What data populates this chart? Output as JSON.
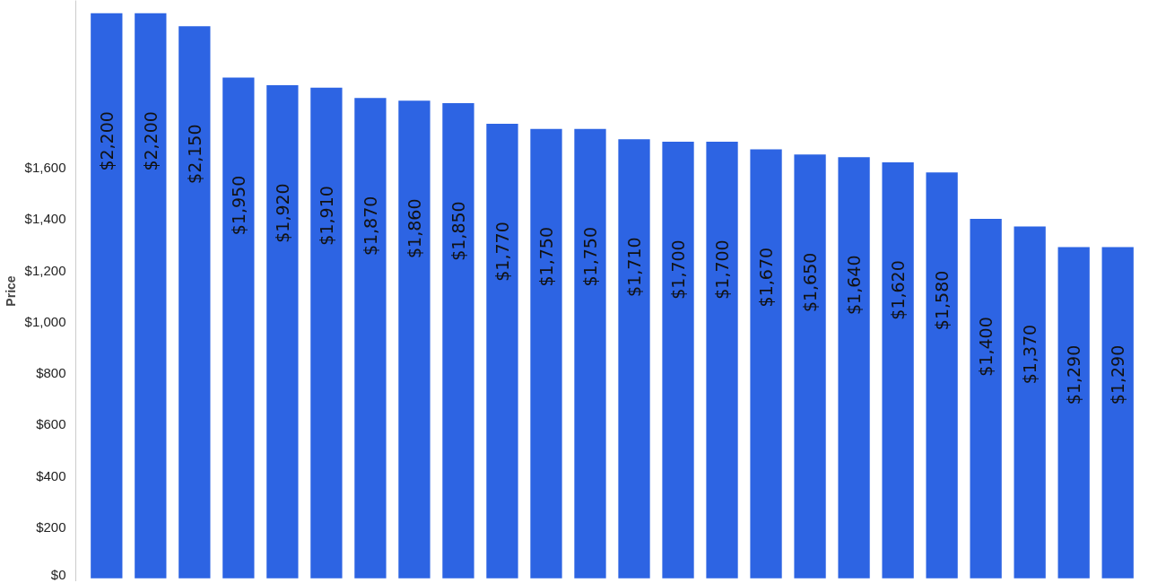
{
  "chart_data": {
    "type": "bar",
    "ylabel": "Price",
    "categories": [
      null,
      null,
      null,
      null,
      null,
      null,
      null,
      null,
      null,
      null,
      null,
      null,
      null,
      null,
      null,
      null,
      null,
      null,
      null,
      null,
      null,
      null,
      null,
      null
    ],
    "values": [
      2200,
      2200,
      2150,
      1950,
      1920,
      1910,
      1870,
      1860,
      1850,
      1770,
      1750,
      1750,
      1710,
      1700,
      1700,
      1670,
      1650,
      1640,
      1620,
      1580,
      1400,
      1370,
      1290,
      1290
    ],
    "value_labels": [
      "$2,200",
      "$2,200",
      "$2,150",
      "$1,950",
      "$1,920",
      "$1,910",
      "$1,870",
      "$1,860",
      "$1,850",
      "$1,770",
      "$1,750",
      "$1,750",
      "$1,710",
      "$1,700",
      "$1,700",
      "$1,670",
      "$1,650",
      "$1,640",
      "$1,620",
      "$1,580",
      "$1,400",
      "$1,370",
      "$1,290",
      "$1,290"
    ],
    "color": "#2d64e3",
    "ylim": [
      -13,
      2250
    ],
    "yticks": [
      {
        "value": 0,
        "label": "$0"
      },
      {
        "value": 200,
        "label": "$200"
      },
      {
        "value": 400,
        "label": "$400"
      },
      {
        "value": 600,
        "label": "$600"
      },
      {
        "value": 800,
        "label": "$800"
      },
      {
        "value": 1000,
        "label": "$1,000"
      },
      {
        "value": 1200,
        "label": "$1,200"
      },
      {
        "value": 1400,
        "label": "$1,400"
      },
      {
        "value": 1600,
        "label": "$1,600"
      }
    ],
    "grid": false
  }
}
